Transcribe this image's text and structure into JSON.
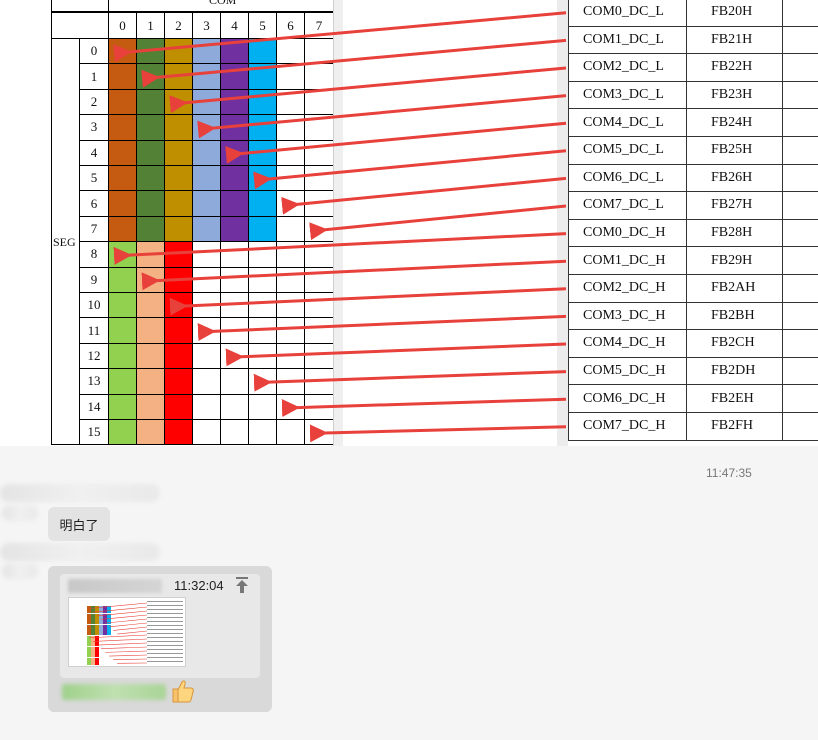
{
  "shared_image": {
    "com_header": "COM",
    "seg_label": "SEG",
    "com_columns": [
      "0",
      "1",
      "2",
      "3",
      "4",
      "5",
      "6",
      "7"
    ],
    "seg_rows": [
      "0",
      "1",
      "2",
      "3",
      "4",
      "5",
      "6",
      "7",
      "8",
      "9",
      "10",
      "11",
      "12",
      "13",
      "14",
      "15"
    ],
    "upper_colors": [
      "#c55a11",
      "#538135",
      "#bf8f00",
      "#8eaadb",
      "#7030a0",
      "#00b0f0"
    ],
    "lower_colors": [
      "#92d050",
      "#f4b183",
      "#ff0000"
    ],
    "arrow_color": "#e8403a",
    "registers": [
      {
        "name": "COM0_DC_L",
        "addr": "FB20H"
      },
      {
        "name": "COM1_DC_L",
        "addr": "FB21H"
      },
      {
        "name": "COM2_DC_L",
        "addr": "FB22H"
      },
      {
        "name": "COM3_DC_L",
        "addr": "FB23H"
      },
      {
        "name": "COM4_DC_L",
        "addr": "FB24H"
      },
      {
        "name": "COM5_DC_L",
        "addr": "FB25H"
      },
      {
        "name": "COM6_DC_L",
        "addr": "FB26H"
      },
      {
        "name": "COM7_DC_L",
        "addr": "FB27H"
      },
      {
        "name": "COM0_DC_H",
        "addr": "FB28H"
      },
      {
        "name": "COM1_DC_H",
        "addr": "FB29H"
      },
      {
        "name": "COM2_DC_H",
        "addr": "FB2AH"
      },
      {
        "name": "COM3_DC_H",
        "addr": "FB2BH"
      },
      {
        "name": "COM4_DC_H",
        "addr": "FB2CH"
      },
      {
        "name": "COM5_DC_H",
        "addr": "FB2DH"
      },
      {
        "name": "COM6_DC_H",
        "addr": "FB2EH"
      },
      {
        "name": "COM7_DC_H",
        "addr": "FB2FH"
      }
    ]
  },
  "chat": {
    "timestamp": "11:47:35",
    "message_text": "明白了",
    "quote": {
      "time": "11:32:04",
      "pin_icon": "pin-top-icon",
      "emoji": "thumbs-up-icon"
    }
  }
}
